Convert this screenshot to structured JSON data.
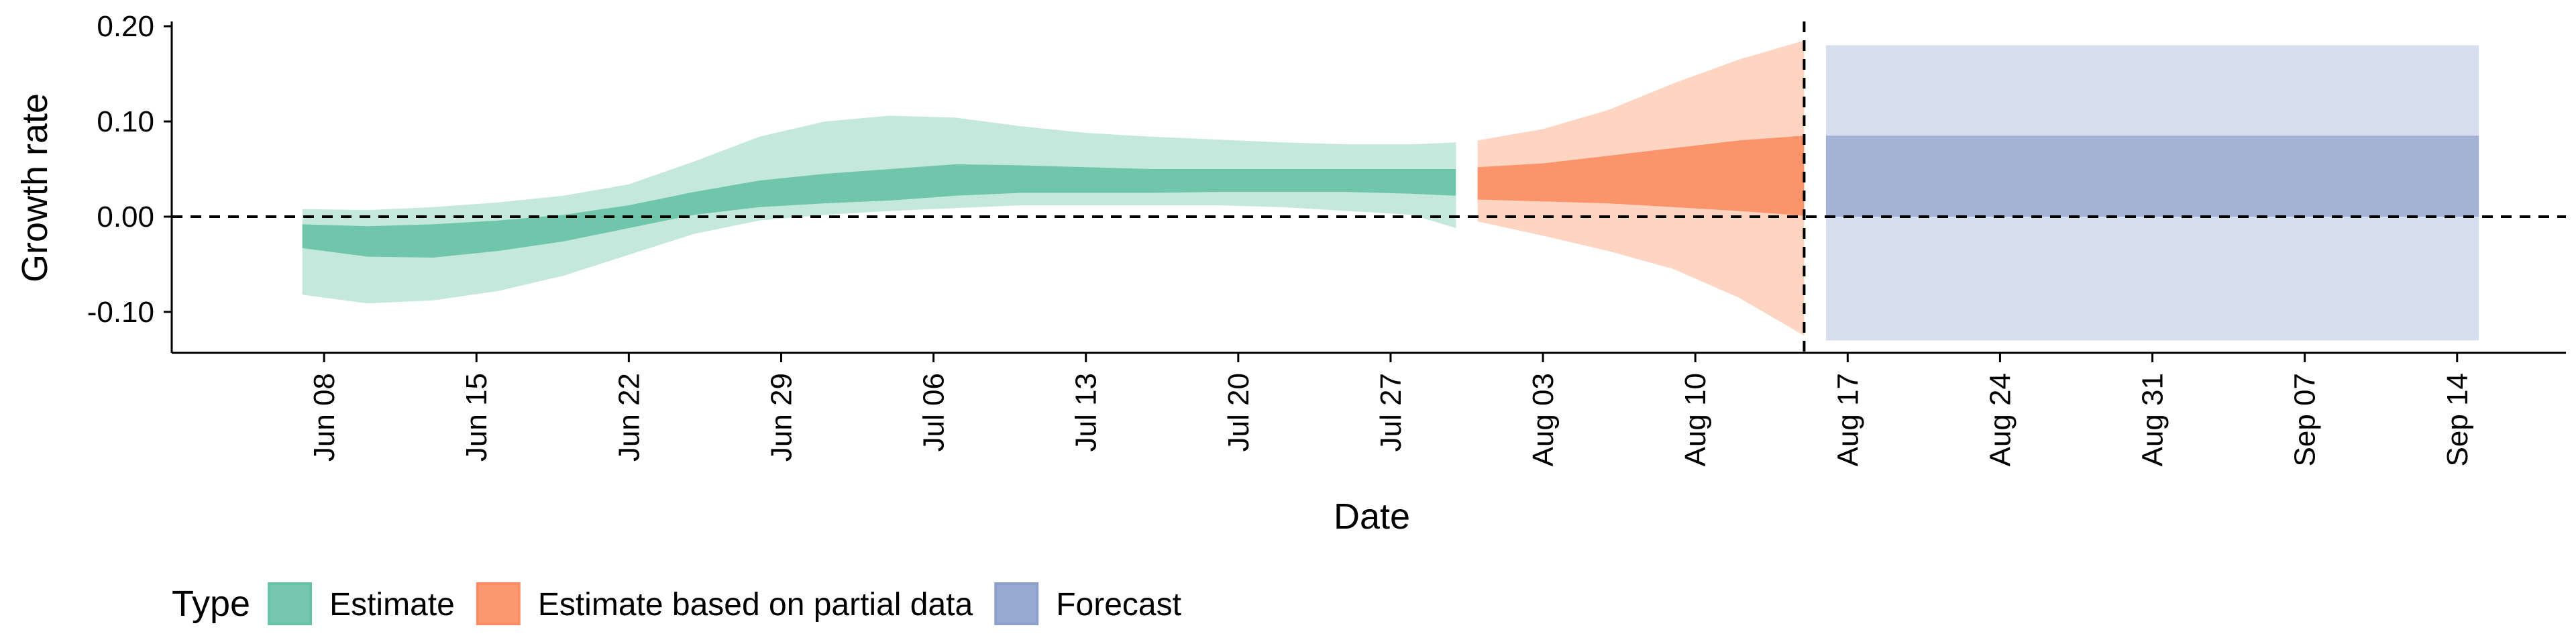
{
  "chart_data": {
    "type": "area",
    "xlabel": "Date",
    "ylabel": "Growth rate",
    "ylim": [
      -0.143,
      0.205
    ],
    "xlim": [
      "2020-06-01",
      "2020-09-19"
    ],
    "y_ticks": [
      {
        "value": 0.2,
        "label": "0.20"
      },
      {
        "value": 0.1,
        "label": "0.10"
      },
      {
        "value": 0.0,
        "label": "0.00"
      },
      {
        "value": -0.1,
        "label": "-0.10"
      }
    ],
    "x_ticks": [
      {
        "date": "2020-06-08",
        "label": "Jun 08"
      },
      {
        "date": "2020-06-15",
        "label": "Jun 15"
      },
      {
        "date": "2020-06-22",
        "label": "Jun 22"
      },
      {
        "date": "2020-06-29",
        "label": "Jun 29"
      },
      {
        "date": "2020-07-06",
        "label": "Jul 06"
      },
      {
        "date": "2020-07-13",
        "label": "Jul 13"
      },
      {
        "date": "2020-07-20",
        "label": "Jul 20"
      },
      {
        "date": "2020-07-27",
        "label": "Jul 27"
      },
      {
        "date": "2020-08-03",
        "label": "Aug 03"
      },
      {
        "date": "2020-08-10",
        "label": "Aug 10"
      },
      {
        "date": "2020-08-17",
        "label": "Aug 17"
      },
      {
        "date": "2020-08-24",
        "label": "Aug 24"
      },
      {
        "date": "2020-08-31",
        "label": "Aug 31"
      },
      {
        "date": "2020-09-07",
        "label": "Sep 07"
      },
      {
        "date": "2020-09-14",
        "label": "Sep 14"
      }
    ],
    "reference_lines": {
      "horizontal_y": 0.0,
      "vertical_date": "2020-08-15"
    },
    "legend": {
      "title": "Type",
      "position": "bottom",
      "items": [
        {
          "label": "Estimate",
          "color": "#66c2a5"
        },
        {
          "label": "Estimate based on partial data",
          "color": "#fc8d62"
        },
        {
          "label": "Forecast",
          "color": "#8da0cb"
        }
      ]
    },
    "series": [
      {
        "name": "Estimate",
        "color": "#66c2a5",
        "outer_opacity": 0.38,
        "inner_opacity": 0.9,
        "points": [
          {
            "date": "2020-06-07",
            "outer": [
              -0.082,
              0.008
            ],
            "inner": [
              -0.033,
              -0.008
            ]
          },
          {
            "date": "2020-06-10",
            "outer": [
              -0.091,
              0.007
            ],
            "inner": [
              -0.042,
              -0.01
            ]
          },
          {
            "date": "2020-06-13",
            "outer": [
              -0.088,
              0.01
            ],
            "inner": [
              -0.043,
              -0.008
            ]
          },
          {
            "date": "2020-06-16",
            "outer": [
              -0.078,
              0.015
            ],
            "inner": [
              -0.036,
              -0.004
            ]
          },
          {
            "date": "2020-06-19",
            "outer": [
              -0.062,
              0.022
            ],
            "inner": [
              -0.026,
              0.002
            ]
          },
          {
            "date": "2020-06-22",
            "outer": [
              -0.04,
              0.034
            ],
            "inner": [
              -0.012,
              0.012
            ]
          },
          {
            "date": "2020-06-25",
            "outer": [
              -0.018,
              0.058
            ],
            "inner": [
              0.002,
              0.026
            ]
          },
          {
            "date": "2020-06-28",
            "outer": [
              -0.004,
              0.084
            ],
            "inner": [
              0.01,
              0.038
            ]
          },
          {
            "date": "2020-07-01",
            "outer": [
              0.002,
              0.1
            ],
            "inner": [
              0.014,
              0.045
            ]
          },
          {
            "date": "2020-07-04",
            "outer": [
              0.006,
              0.106
            ],
            "inner": [
              0.017,
              0.05
            ]
          },
          {
            "date": "2020-07-07",
            "outer": [
              0.009,
              0.104
            ],
            "inner": [
              0.022,
              0.055
            ]
          },
          {
            "date": "2020-07-10",
            "outer": [
              0.012,
              0.095
            ],
            "inner": [
              0.025,
              0.054
            ]
          },
          {
            "date": "2020-07-13",
            "outer": [
              0.012,
              0.088
            ],
            "inner": [
              0.025,
              0.052
            ]
          },
          {
            "date": "2020-07-16",
            "outer": [
              0.012,
              0.084
            ],
            "inner": [
              0.025,
              0.05
            ]
          },
          {
            "date": "2020-07-19",
            "outer": [
              0.012,
              0.081
            ],
            "inner": [
              0.026,
              0.05
            ]
          },
          {
            "date": "2020-07-22",
            "outer": [
              0.01,
              0.078
            ],
            "inner": [
              0.026,
              0.05
            ]
          },
          {
            "date": "2020-07-25",
            "outer": [
              0.006,
              0.076
            ],
            "inner": [
              0.026,
              0.05
            ]
          },
          {
            "date": "2020-07-28",
            "outer": [
              0.002,
              0.076
            ],
            "inner": [
              0.024,
              0.05
            ]
          },
          {
            "date": "2020-07-30",
            "outer": [
              -0.012,
              0.078
            ],
            "inner": [
              0.022,
              0.05
            ]
          }
        ]
      },
      {
        "name": "Estimate based on partial data",
        "color": "#fc8d62",
        "outer_opacity": 0.38,
        "inner_opacity": 0.9,
        "points": [
          {
            "date": "2020-07-31",
            "outer": [
              -0.005,
              0.08
            ],
            "inner": [
              0.018,
              0.052
            ]
          },
          {
            "date": "2020-08-03",
            "outer": [
              -0.02,
              0.092
            ],
            "inner": [
              0.016,
              0.056
            ]
          },
          {
            "date": "2020-08-06",
            "outer": [
              -0.036,
              0.112
            ],
            "inner": [
              0.014,
              0.064
            ]
          },
          {
            "date": "2020-08-09",
            "outer": [
              -0.055,
              0.14
            ],
            "inner": [
              0.01,
              0.072
            ]
          },
          {
            "date": "2020-08-12",
            "outer": [
              -0.085,
              0.165
            ],
            "inner": [
              0.006,
              0.08
            ]
          },
          {
            "date": "2020-08-15",
            "outer": [
              -0.125,
              0.185
            ],
            "inner": [
              0.001,
              0.085
            ]
          }
        ]
      },
      {
        "name": "Forecast",
        "color": "#8da0cb",
        "outer_opacity": 0.35,
        "inner_opacity": 0.7,
        "points": [
          {
            "date": "2020-08-16",
            "outer": [
              -0.13,
              0.18
            ],
            "inner": [
              0.0,
              0.085
            ]
          },
          {
            "date": "2020-09-15",
            "outer": [
              -0.13,
              0.18
            ],
            "inner": [
              0.0,
              0.085
            ]
          }
        ]
      }
    ]
  }
}
